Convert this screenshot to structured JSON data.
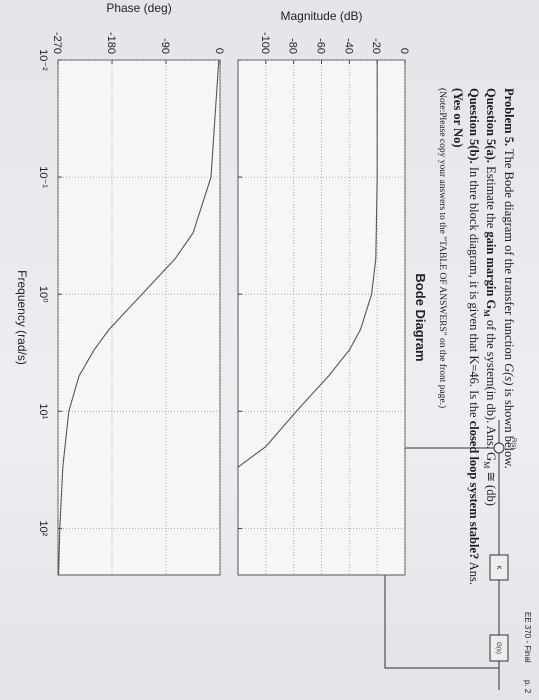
{
  "problem": {
    "line1": [
      "Problem 5.",
      " The Bode diagram of the transfer function ",
      "G(s)",
      " is shown below."
    ],
    "line2": [
      "Question 5(a).",
      " Estimate the ",
      "gain margin G",
      "M",
      " of the system(in db).  Ans. G",
      "M",
      " ≅       (db)"
    ],
    "line3": [
      "Question 5(b).",
      " In thre block diagram, it is given that K=46.  Is the ",
      "closed loop system stable?",
      " Ans."
    ],
    "line4": "(Yes or No)",
    "note": "(Note:Please copy your answers to the \"TABLE OF ANSWERS\" on the front page.)"
  },
  "block_diagram": {
    "input": "R(s)",
    "gain": "K",
    "plant": "G(s)"
  },
  "footer": {
    "course": "EE 370 - Final",
    "page": "p. 2"
  },
  "chart_data": [
    {
      "type": "line",
      "title": "Bode Diagram",
      "ylabel": "Magnitude (dB)",
      "xscale": "log",
      "grid": true,
      "x": [
        0.01,
        0.1,
        0.5,
        1,
        2,
        3,
        5,
        10,
        20,
        30
      ],
      "series": [
        {
          "name": "Magnitude",
          "color": "#55565c",
          "values": [
            -20,
            -20,
            -21,
            -24,
            -32,
            -40,
            -55,
            -78,
            -100,
            -120
          ]
        }
      ],
      "xlim": [
        0.01,
        250
      ],
      "xticks": [
        0.01,
        0.1,
        1,
        10,
        100
      ],
      "ylim": [
        -120,
        0
      ],
      "yticks": [
        0,
        -20,
        -40,
        -60,
        -80,
        -100
      ]
    },
    {
      "type": "line",
      "ylabel": "Phase (deg)",
      "xlabel": "Frequency (rad/s)",
      "xscale": "log",
      "grid": true,
      "x": [
        0.01,
        0.1,
        0.3,
        0.5,
        1,
        2,
        3,
        5,
        10,
        30,
        100,
        250
      ],
      "series": [
        {
          "name": "Phase",
          "color": "#55565c",
          "values": [
            -2,
            -15,
            -45,
            -75,
            -130,
            -185,
            -210,
            -235,
            -252,
            -262,
            -267,
            -269
          ]
        }
      ],
      "xlim": [
        0.01,
        250
      ],
      "xticks": [
        {
          "value": 0.01,
          "label": "10⁻²"
        },
        {
          "value": 0.1,
          "label": "10⁻¹"
        },
        {
          "value": 1,
          "label": "10⁰"
        },
        {
          "value": 10,
          "label": "10¹"
        },
        {
          "value": 100,
          "label": "10²"
        }
      ],
      "ylim": [
        -270,
        0
      ],
      "yticks": [
        0,
        -90,
        -180,
        -270
      ]
    }
  ]
}
